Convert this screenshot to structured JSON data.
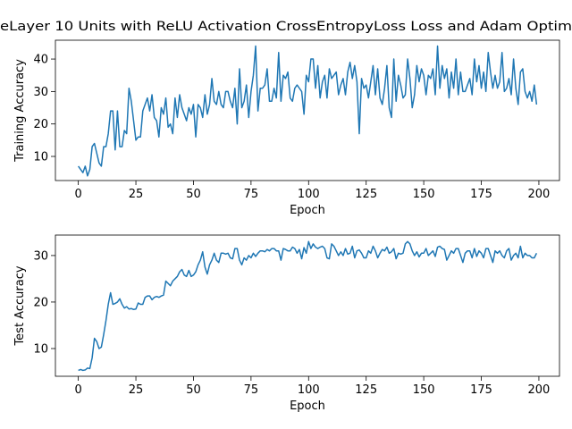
{
  "chart_data": [
    {
      "type": "line",
      "title": "eLayer 10 Units with ReLU Activation CrossEntropyLoss Loss and Adam Optim",
      "xlabel": "Epoch",
      "ylabel": "Training Accuracy",
      "color": "#1f77b4",
      "x": [
        0,
        1,
        2,
        3,
        4,
        5,
        6,
        7,
        8,
        9,
        10,
        11,
        12,
        13,
        14,
        15,
        16,
        17,
        18,
        19,
        20,
        21,
        22,
        23,
        24,
        25,
        26,
        27,
        28,
        29,
        30,
        31,
        32,
        33,
        34,
        35,
        36,
        37,
        38,
        39,
        40,
        41,
        42,
        43,
        44,
        45,
        46,
        47,
        48,
        49,
        50,
        51,
        52,
        53,
        54,
        55,
        56,
        57,
        58,
        59,
        60,
        61,
        62,
        63,
        64,
        65,
        66,
        67,
        68,
        69,
        70,
        71,
        72,
        73,
        74,
        75,
        76,
        77,
        78,
        79,
        80,
        81,
        82,
        83,
        84,
        85,
        86,
        87,
        88,
        89,
        90,
        91,
        92,
        93,
        94,
        95,
        96,
        97,
        98,
        99,
        100,
        101,
        102,
        103,
        104,
        105,
        106,
        107,
        108,
        109,
        110,
        111,
        112,
        113,
        114,
        115,
        116,
        117,
        118,
        119,
        120,
        121,
        122,
        123,
        124,
        125,
        126,
        127,
        128,
        129,
        130,
        131,
        132,
        133,
        134,
        135,
        136,
        137,
        138,
        139,
        140,
        141,
        142,
        143,
        144,
        145,
        146,
        147,
        148,
        149,
        150,
        151,
        152,
        153,
        154,
        155,
        156,
        157,
        158,
        159,
        160,
        161,
        162,
        163,
        164,
        165,
        166,
        167,
        168,
        169,
        170,
        171,
        172,
        173,
        174,
        175,
        176,
        177,
        178,
        179,
        180,
        181,
        182,
        183,
        184,
        185,
        186,
        187,
        188,
        189,
        190,
        191,
        192,
        193,
        194,
        195,
        196,
        197,
        198,
        199
      ],
      "values": [
        7,
        6,
        5,
        7,
        4,
        6,
        13,
        14,
        11,
        8,
        7,
        13,
        13,
        17,
        24,
        24,
        12,
        24,
        13,
        13,
        18,
        17,
        31,
        27,
        21,
        15,
        16,
        16,
        24,
        26,
        28,
        24,
        29,
        22,
        21,
        16,
        25,
        23,
        28,
        19,
        20,
        17,
        28,
        22,
        29,
        25,
        23,
        21,
        25,
        23,
        26,
        16,
        26,
        25,
        22,
        29,
        23,
        26,
        34,
        27,
        26,
        30,
        26,
        25,
        30,
        30,
        27,
        25,
        31,
        20,
        37,
        25,
        27,
        32,
        22,
        30,
        35,
        44,
        24,
        31,
        31,
        32,
        37,
        27,
        27,
        31,
        28,
        42,
        27,
        35,
        34,
        36,
        28,
        27,
        31,
        32,
        31,
        30,
        23,
        35,
        33,
        40,
        40,
        31,
        38,
        28,
        33,
        35,
        28,
        37,
        34,
        35,
        36,
        29,
        32,
        34,
        29,
        36,
        39,
        34,
        38,
        33,
        17,
        34,
        31,
        32,
        28,
        33,
        38,
        29,
        37,
        28,
        26,
        31,
        38,
        25,
        22,
        40,
        27,
        35,
        32,
        28,
        29,
        40,
        34,
        25,
        29,
        38,
        33,
        37,
        35,
        29,
        35,
        34,
        37,
        29,
        44,
        31,
        38,
        34,
        37,
        28,
        36,
        31,
        40,
        29,
        36,
        30,
        30,
        32,
        34,
        29,
        40,
        33,
        38,
        31,
        36,
        30,
        42,
        36,
        31,
        35,
        31,
        33,
        42,
        30,
        31,
        34,
        29,
        40,
        31,
        26,
        36,
        37,
        30,
        28,
        30,
        27,
        32,
        26
      ],
      "xlim": [
        -9.95,
        208.95
      ],
      "ylim": [
        2.57,
        45.8
      ],
      "xticks": [
        0,
        25,
        50,
        75,
        100,
        125,
        150,
        175,
        200
      ],
      "yticks": [
        10,
        20,
        30,
        40
      ]
    },
    {
      "type": "line",
      "xlabel": "Epoch",
      "ylabel": "Test Accuracy",
      "color": "#1f77b4",
      "x": [
        0,
        1,
        2,
        3,
        4,
        5,
        6,
        7,
        8,
        9,
        10,
        11,
        12,
        13,
        14,
        15,
        16,
        17,
        18,
        19,
        20,
        21,
        22,
        23,
        24,
        25,
        26,
        27,
        28,
        29,
        30,
        31,
        32,
        33,
        34,
        35,
        36,
        37,
        38,
        39,
        40,
        41,
        42,
        43,
        44,
        45,
        46,
        47,
        48,
        49,
        50,
        51,
        52,
        53,
        54,
        55,
        56,
        57,
        58,
        59,
        60,
        61,
        62,
        63,
        64,
        65,
        66,
        67,
        68,
        69,
        70,
        71,
        72,
        73,
        74,
        75,
        76,
        77,
        78,
        79,
        80,
        81,
        82,
        83,
        84,
        85,
        86,
        87,
        88,
        89,
        90,
        91,
        92,
        93,
        94,
        95,
        96,
        97,
        98,
        99,
        100,
        101,
        102,
        103,
        104,
        105,
        106,
        107,
        108,
        109,
        110,
        111,
        112,
        113,
        114,
        115,
        116,
        117,
        118,
        119,
        120,
        121,
        122,
        123,
        124,
        125,
        126,
        127,
        128,
        129,
        130,
        131,
        132,
        133,
        134,
        135,
        136,
        137,
        138,
        139,
        140,
        141,
        142,
        143,
        144,
        145,
        146,
        147,
        148,
        149,
        150,
        151,
        152,
        153,
        154,
        155,
        156,
        157,
        158,
        159,
        160,
        161,
        162,
        163,
        164,
        165,
        166,
        167,
        168,
        169,
        170,
        171,
        172,
        173,
        174,
        175,
        176,
        177,
        178,
        179,
        180,
        181,
        182,
        183,
        184,
        185,
        186,
        187,
        188,
        189,
        190,
        191,
        192,
        193,
        194,
        195,
        196,
        197,
        198,
        199
      ],
      "values": [
        5.3,
        5.5,
        5.3,
        5.4,
        5.8,
        5.7,
        8,
        12.2,
        11.5,
        10,
        10.3,
        13,
        16,
        19.5,
        22,
        19.5,
        19.7,
        20,
        20.7,
        19.5,
        18.7,
        19,
        18.5,
        18.6,
        18.4,
        18.5,
        19.8,
        19.5,
        19.5,
        21,
        21.3,
        21.3,
        20.5,
        21,
        21.2,
        21,
        21.3,
        21.5,
        24.5,
        24,
        23.5,
        24.5,
        25,
        25.5,
        26.5,
        27,
        25.8,
        25.5,
        26.8,
        25.5,
        25.8,
        26.5,
        28,
        29,
        30.8,
        27.5,
        26,
        28,
        29,
        30.5,
        29,
        28.5,
        30.5,
        30.5,
        30.3,
        30.5,
        29.5,
        29.3,
        31.5,
        31.5,
        29,
        28,
        29.5,
        29,
        30,
        29.5,
        30.5,
        29.8,
        30.5,
        31,
        31,
        30.8,
        31.3,
        31,
        31.5,
        31.5,
        31,
        31,
        29,
        31.5,
        31.3,
        31,
        31,
        31.8,
        31.5,
        30.5,
        31.3,
        29.3,
        31.7,
        30.5,
        33,
        31.5,
        32.5,
        31.8,
        31.5,
        31.8,
        32,
        31.5,
        29.5,
        29.3,
        32.5,
        32,
        31,
        30,
        30.8,
        30,
        31.5,
        30.3,
        30.5,
        32,
        29.5,
        31,
        31.2,
        30.5,
        29.5,
        29.5,
        31,
        30.5,
        32,
        31,
        29.5,
        30.5,
        31.3,
        31,
        31.8,
        30.5,
        30.8,
        31.5,
        29.3,
        30.5,
        30.3,
        30.5,
        32.5,
        33,
        32.5,
        31,
        30,
        30.8,
        29.7,
        30.5,
        30.5,
        31.5,
        30,
        30.5,
        31,
        29.8,
        31.8,
        32,
        31.5,
        31.3,
        29,
        30,
        31,
        30.5,
        31.5,
        31.5,
        30,
        28.5,
        30.5,
        31,
        31,
        29.5,
        31.5,
        29.8,
        31,
        30.5,
        29.5,
        31.5,
        31.5,
        30,
        28.5,
        31,
        30.5,
        31,
        30,
        29.5,
        31,
        31.5,
        29,
        30,
        30.5,
        29.5,
        32,
        29.5,
        30.5,
        30,
        30,
        29.5,
        29.5,
        30.5
      ],
      "xlim": [
        -9.95,
        208.95
      ],
      "ylim": [
        4.04,
        34.4
      ],
      "xticks": [
        0,
        25,
        50,
        75,
        100,
        125,
        150,
        175,
        200
      ],
      "yticks": [
        10,
        20,
        30
      ]
    }
  ]
}
